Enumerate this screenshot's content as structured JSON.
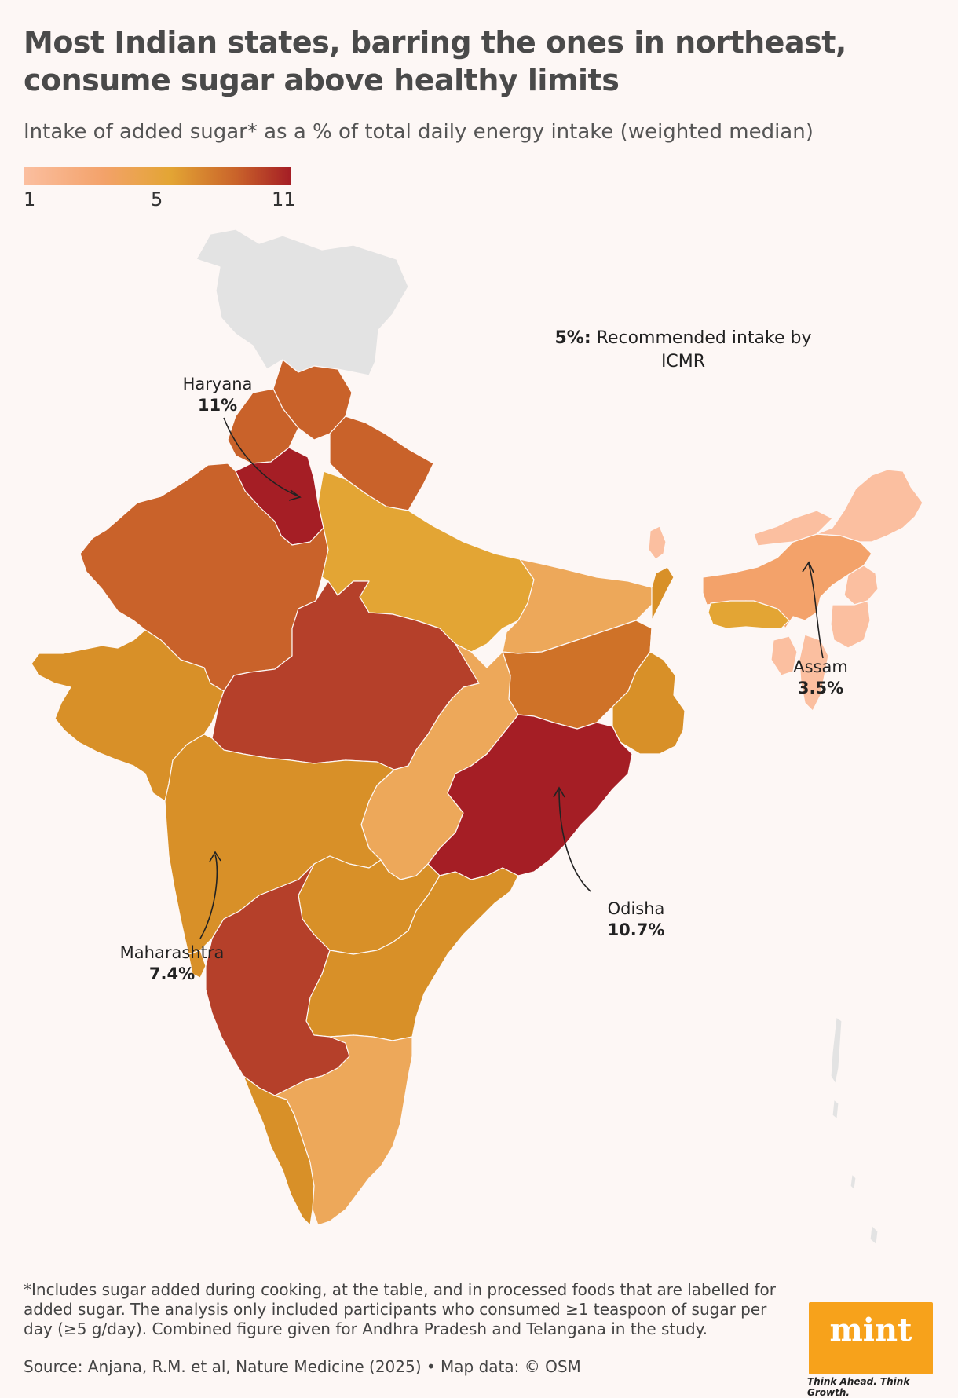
{
  "title": "Most Indian states, barring the ones in northeast, consume sugar above healthy limits",
  "subtitle": "Intake of added sugar* as a % of total daily energy intake (weighted median)",
  "legend": {
    "min": "1",
    "mid": "5",
    "max": "11"
  },
  "colors": {
    "lowest": "#fbbfa0",
    "low": "#f3a26a",
    "mid_low": "#eda85a",
    "mid": "#e3a534",
    "mid_high": "#d89028",
    "high": "#c9622a",
    "higher": "#b5402a",
    "highest": "#a51e25",
    "no_data": "#e3e3e3"
  },
  "recommended": {
    "value": "5%:",
    "text": "Recommended intake by ICMR"
  },
  "annotations": [
    {
      "state": "Haryana",
      "value": "11%"
    },
    {
      "state": "Assam",
      "value": "3.5%"
    },
    {
      "state": "Odisha",
      "value": "10.7%"
    },
    {
      "state": "Maharashtra",
      "value": "7.4%"
    }
  ],
  "footnote": "*Includes sugar added during cooking, at the table, and in processed foods that are labelled for added sugar. The analysis only included participants who consumed ≥1 teaspoon of sugar per day (≥5 g/day). Combined figure given for Andhra Pradesh and Telangana in the study.",
  "source": "Source: Anjana, R.M. et al, Nature Medicine (2025) • Map data: © OSM",
  "logo": {
    "word": "mint",
    "tagline": "Think Ahead. Think Growth."
  }
}
